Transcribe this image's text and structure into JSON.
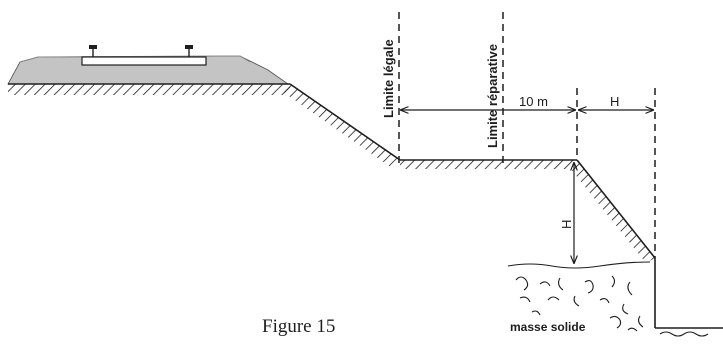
{
  "labels": {
    "limite_legale": "Limite légale",
    "limite_reparative": "Limite réparative",
    "dim_10m": "10 m",
    "dim_h_top": "H",
    "dim_h_side": "H",
    "masse_solide": "masse solide",
    "caption": "Figure 15"
  },
  "colors": {
    "ink": "#1e1e1e",
    "embankment_fill": "#c4c4c4"
  }
}
